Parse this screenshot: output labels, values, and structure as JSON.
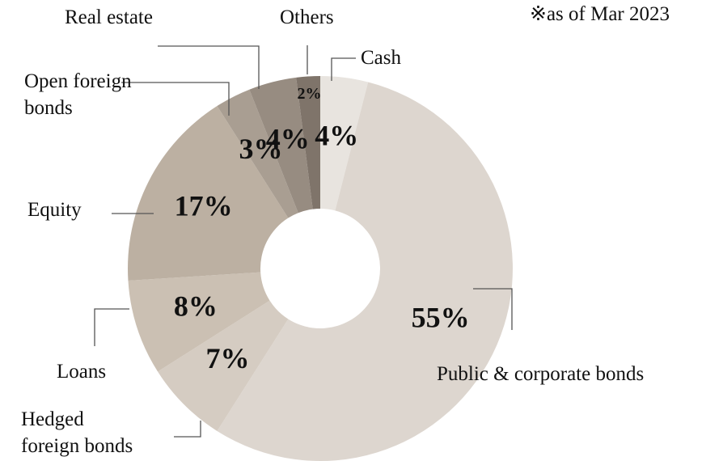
{
  "chart_data": {
    "type": "donut",
    "note": "※as of Mar 2023",
    "categories": [
      "Cash",
      "Public & corporate bonds",
      "Hedged\nforeign bonds",
      "Loans",
      "Equity",
      "Open foreign\nbonds",
      "Real estate",
      "Others"
    ],
    "values": [
      4,
      55,
      7,
      8,
      17,
      3,
      4,
      2
    ],
    "value_labels": [
      "4%",
      "55%",
      "7%",
      "8%",
      "17%",
      "3%",
      "4%",
      "2%"
    ],
    "colors": [
      "#e8e4df",
      "#ddd6cf",
      "#d5ccc2",
      "#cbc0b3",
      "#bcb0a2",
      "#a99e92",
      "#978c81",
      "#7f746a"
    ]
  }
}
